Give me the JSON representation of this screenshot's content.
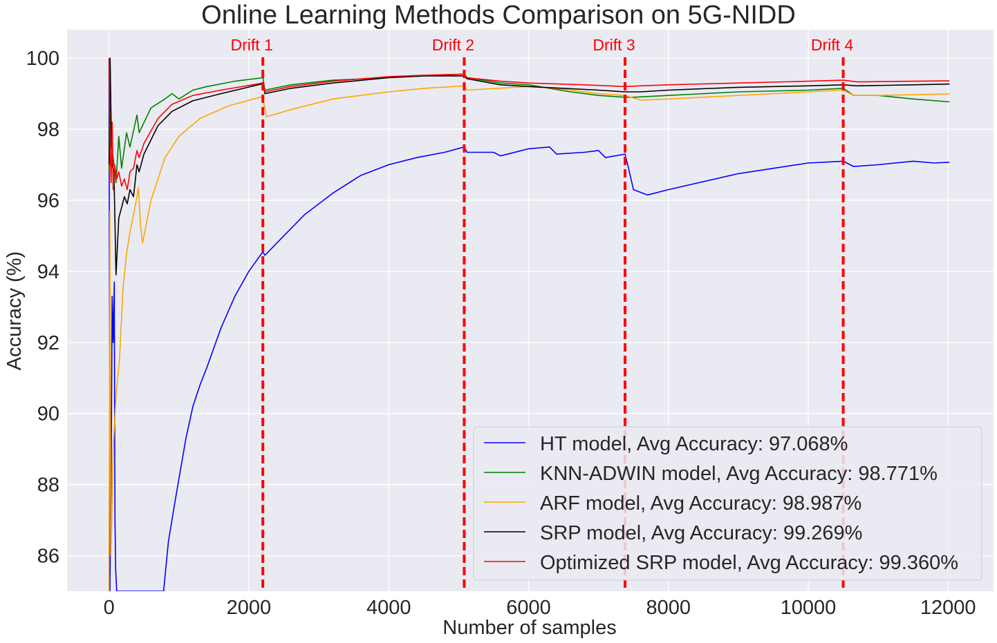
{
  "chart_data": {
    "type": "line",
    "title": "Online Learning Methods Comparison on 5G-NIDD",
    "xlabel": "Number of samples",
    "ylabel": "Accuracy (%)",
    "xlim": [
      -600,
      12650
    ],
    "ylim": [
      85,
      100.8
    ],
    "xticks": [
      0,
      2000,
      4000,
      6000,
      8000,
      10000,
      12000
    ],
    "yticks": [
      86,
      88,
      90,
      92,
      94,
      96,
      98,
      100
    ],
    "grid": true,
    "legend_position": "lower-right",
    "background": "#eaeaf2",
    "drifts": [
      {
        "label": "Drift 1",
        "x": 2200
      },
      {
        "label": "Drift 2",
        "x": 5080
      },
      {
        "label": "Drift 3",
        "x": 7380
      },
      {
        "label": "Drift 4",
        "x": 10500
      }
    ],
    "drift_color": "#ff0000",
    "series": [
      {
        "name": "HT model, Avg Accuracy: 97.068%",
        "color": "#0000ff",
        "points": [
          [
            0,
            100
          ],
          [
            12,
            85
          ],
          [
            30,
            88
          ],
          [
            45,
            93.3
          ],
          [
            60,
            92
          ],
          [
            75,
            93.7
          ],
          [
            85,
            87
          ],
          [
            95,
            85.6
          ],
          [
            110,
            85
          ],
          [
            780,
            85
          ],
          [
            850,
            86.4
          ],
          [
            950,
            87.6
          ],
          [
            1100,
            89.3
          ],
          [
            1200,
            90.2
          ],
          [
            1300,
            90.8
          ],
          [
            1400,
            91.3
          ],
          [
            1600,
            92.4
          ],
          [
            1800,
            93.3
          ],
          [
            2000,
            94
          ],
          [
            2200,
            94.55
          ],
          [
            2230,
            94.45
          ],
          [
            2500,
            95
          ],
          [
            2800,
            95.6
          ],
          [
            3200,
            96.2
          ],
          [
            3600,
            96.7
          ],
          [
            4000,
            97
          ],
          [
            4400,
            97.2
          ],
          [
            4800,
            97.35
          ],
          [
            5080,
            97.5
          ],
          [
            5120,
            97.35
          ],
          [
            5500,
            97.35
          ],
          [
            5600,
            97.25
          ],
          [
            6000,
            97.45
          ],
          [
            6300,
            97.5
          ],
          [
            6400,
            97.3
          ],
          [
            6800,
            97.35
          ],
          [
            7000,
            97.4
          ],
          [
            7100,
            97.2
          ],
          [
            7380,
            97.3
          ],
          [
            7430,
            96.9
          ],
          [
            7500,
            96.3
          ],
          [
            7700,
            96.15
          ],
          [
            8000,
            96.3
          ],
          [
            9000,
            96.75
          ],
          [
            10000,
            97.05
          ],
          [
            10500,
            97.1
          ],
          [
            10650,
            96.95
          ],
          [
            11000,
            97
          ],
          [
            11500,
            97.1
          ],
          [
            11800,
            97.05
          ],
          [
            12020,
            97.07
          ]
        ]
      },
      {
        "name": "KNN-ADWIN model, Avg Accuracy: 98.771%",
        "color": "#008000",
        "points": [
          [
            0,
            96.8
          ],
          [
            15,
            100
          ],
          [
            30,
            97.5
          ],
          [
            60,
            97.2
          ],
          [
            100,
            96.5
          ],
          [
            140,
            97.8
          ],
          [
            180,
            96.9
          ],
          [
            250,
            97.9
          ],
          [
            300,
            97.5
          ],
          [
            400,
            98.4
          ],
          [
            430,
            97.9
          ],
          [
            600,
            98.6
          ],
          [
            800,
            98.85
          ],
          [
            900,
            99
          ],
          [
            1000,
            98.85
          ],
          [
            1200,
            99.1
          ],
          [
            1400,
            99.2
          ],
          [
            1800,
            99.35
          ],
          [
            2200,
            99.45
          ],
          [
            2230,
            99.1
          ],
          [
            2600,
            99.25
          ],
          [
            3200,
            99.38
          ],
          [
            4000,
            99.45
          ],
          [
            4500,
            99.5
          ],
          [
            5080,
            99.55
          ],
          [
            5120,
            99.45
          ],
          [
            5600,
            99.3
          ],
          [
            6000,
            99.25
          ],
          [
            6300,
            99.15
          ],
          [
            6600,
            99.05
          ],
          [
            7000,
            98.95
          ],
          [
            7380,
            98.9
          ],
          [
            7500,
            98.9
          ],
          [
            8000,
            98.95
          ],
          [
            9000,
            99.05
          ],
          [
            10000,
            99.1
          ],
          [
            10500,
            99.15
          ],
          [
            10650,
            98.95
          ],
          [
            11000,
            98.95
          ],
          [
            11500,
            98.85
          ],
          [
            12020,
            98.77
          ]
        ]
      },
      {
        "name": "ARF model, Avg Accuracy: 98.987%",
        "color": "#ffa500",
        "points": [
          [
            0,
            85
          ],
          [
            12,
            95.7
          ],
          [
            25,
            86
          ],
          [
            40,
            87
          ],
          [
            60,
            89
          ],
          [
            100,
            90.5
          ],
          [
            150,
            91.5
          ],
          [
            200,
            93.5
          ],
          [
            250,
            94.5
          ],
          [
            300,
            95.1
          ],
          [
            350,
            95.6
          ],
          [
            400,
            96.1
          ],
          [
            420,
            96.35
          ],
          [
            450,
            95.3
          ],
          [
            480,
            94.8
          ],
          [
            600,
            96
          ],
          [
            800,
            97.2
          ],
          [
            1000,
            97.8
          ],
          [
            1300,
            98.3
          ],
          [
            1700,
            98.65
          ],
          [
            2200,
            98.92
          ],
          [
            2250,
            98.35
          ],
          [
            2600,
            98.55
          ],
          [
            3200,
            98.85
          ],
          [
            4000,
            99.05
          ],
          [
            4500,
            99.15
          ],
          [
            5080,
            99.22
          ],
          [
            5120,
            99.1
          ],
          [
            6000,
            99.2
          ],
          [
            6400,
            99.15
          ],
          [
            7000,
            99.0
          ],
          [
            7380,
            98.95
          ],
          [
            7600,
            98.82
          ],
          [
            8000,
            98.85
          ],
          [
            9000,
            98.95
          ],
          [
            10000,
            99.05
          ],
          [
            10500,
            99.1
          ],
          [
            10650,
            98.95
          ],
          [
            11000,
            98.95
          ],
          [
            12020,
            98.99
          ]
        ]
      },
      {
        "name": "SRP model, Avg Accuracy: 99.269%",
        "color": "#000000",
        "points": [
          [
            0,
            97
          ],
          [
            15,
            100
          ],
          [
            40,
            97
          ],
          [
            70,
            96.8
          ],
          [
            100,
            93.9
          ],
          [
            140,
            95.5
          ],
          [
            180,
            95.8
          ],
          [
            220,
            96.1
          ],
          [
            260,
            95.9
          ],
          [
            300,
            96.3
          ],
          [
            350,
            96.1
          ],
          [
            400,
            97
          ],
          [
            430,
            96.8
          ],
          [
            500,
            97.3
          ],
          [
            700,
            98.1
          ],
          [
            900,
            98.5
          ],
          [
            1200,
            98.8
          ],
          [
            1600,
            99.0
          ],
          [
            2200,
            99.28
          ],
          [
            2230,
            99.0
          ],
          [
            2600,
            99.15
          ],
          [
            3200,
            99.3
          ],
          [
            4000,
            99.45
          ],
          [
            4500,
            99.5
          ],
          [
            5080,
            99.5
          ],
          [
            5120,
            99.42
          ],
          [
            5600,
            99.25
          ],
          [
            6000,
            99.2
          ],
          [
            7000,
            99.1
          ],
          [
            7380,
            99.05
          ],
          [
            7600,
            99.05
          ],
          [
            8000,
            99.1
          ],
          [
            9000,
            99.18
          ],
          [
            10000,
            99.22
          ],
          [
            10500,
            99.25
          ],
          [
            10700,
            99.22
          ],
          [
            11500,
            99.25
          ],
          [
            12020,
            99.27
          ]
        ]
      },
      {
        "name": "Optimized SRP model, Avg Accuracy: 99.360%",
        "color": "#ff0000",
        "points": [
          [
            0,
            100
          ],
          [
            15,
            97.5
          ],
          [
            30,
            96.5
          ],
          [
            45,
            98.2
          ],
          [
            60,
            96.3
          ],
          [
            80,
            97
          ],
          [
            110,
            96.6
          ],
          [
            140,
            96.8
          ],
          [
            180,
            96.4
          ],
          [
            220,
            96.6
          ],
          [
            260,
            96.3
          ],
          [
            300,
            96.8
          ],
          [
            350,
            96.9
          ],
          [
            400,
            97.4
          ],
          [
            430,
            97.2
          ],
          [
            500,
            97.6
          ],
          [
            700,
            98.3
          ],
          [
            900,
            98.7
          ],
          [
            1200,
            98.95
          ],
          [
            1600,
            99.1
          ],
          [
            2200,
            99.3
          ],
          [
            2230,
            99.05
          ],
          [
            2600,
            99.2
          ],
          [
            3200,
            99.35
          ],
          [
            4000,
            99.48
          ],
          [
            4500,
            99.52
          ],
          [
            5080,
            99.55
          ],
          [
            5120,
            99.45
          ],
          [
            5600,
            99.35
          ],
          [
            6000,
            99.3
          ],
          [
            6800,
            99.25
          ],
          [
            7380,
            99.2
          ],
          [
            7600,
            99.22
          ],
          [
            8000,
            99.25
          ],
          [
            9000,
            99.3
          ],
          [
            10000,
            99.35
          ],
          [
            10500,
            99.38
          ],
          [
            10700,
            99.33
          ],
          [
            11500,
            99.35
          ],
          [
            12020,
            99.36
          ]
        ]
      }
    ]
  }
}
